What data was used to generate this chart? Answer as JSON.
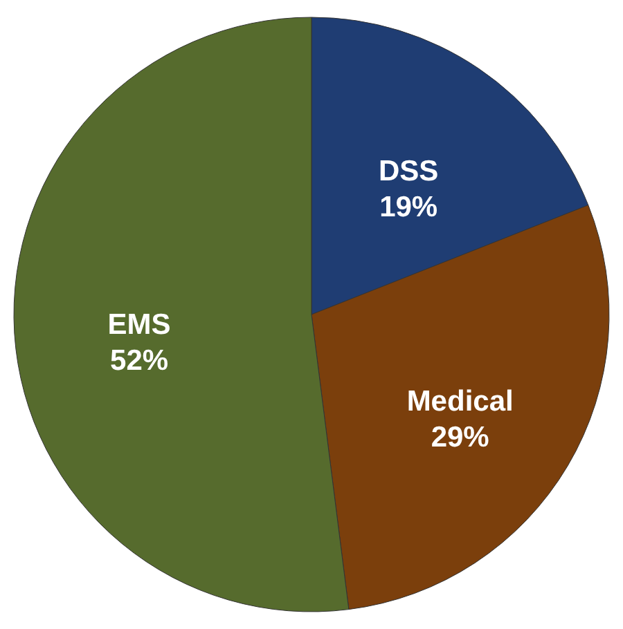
{
  "chart_data": {
    "type": "pie",
    "categories": [
      "DSS",
      "Medical",
      "EMS"
    ],
    "values": [
      19,
      29,
      52
    ],
    "value_labels": [
      "19%",
      "29%",
      "52%"
    ],
    "colors": [
      "#1f3d73",
      "#7b3f0c",
      "#566b2d"
    ]
  }
}
